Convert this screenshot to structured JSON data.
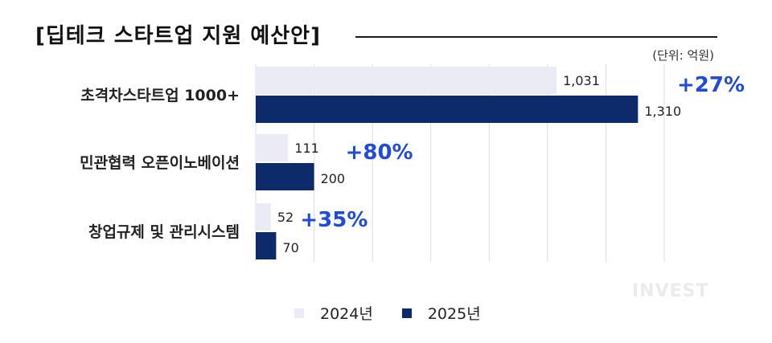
{
  "title": "[딥테크 스타트업 지원 예산안]",
  "unit_note": "(단위: 억원)",
  "watermark": "INVEST",
  "colors": {
    "series_2024": "#ebebf5",
    "series_2025": "#0d2a6b",
    "growth": "#1f4bd8",
    "grid": "#dcdcdc"
  },
  "chart_data": {
    "type": "bar",
    "orientation": "horizontal",
    "categories": [
      "초격차스타트업 1000+",
      "민관협력 오픈이노베이션",
      "창업규제 및 관리시스템"
    ],
    "series": [
      {
        "name": "2024년",
        "values": [
          1031,
          111,
          52
        ],
        "labels": [
          "1,031",
          "111",
          "52"
        ]
      },
      {
        "name": "2025년",
        "values": [
          1310,
          200,
          70
        ],
        "labels": [
          "1,310",
          "200",
          "70"
        ]
      }
    ],
    "growth_labels": [
      "+27%",
      "+80%",
      "+35%"
    ],
    "xlim": [
      0,
      1400
    ],
    "grid": true,
    "legend": "bottom-center"
  }
}
